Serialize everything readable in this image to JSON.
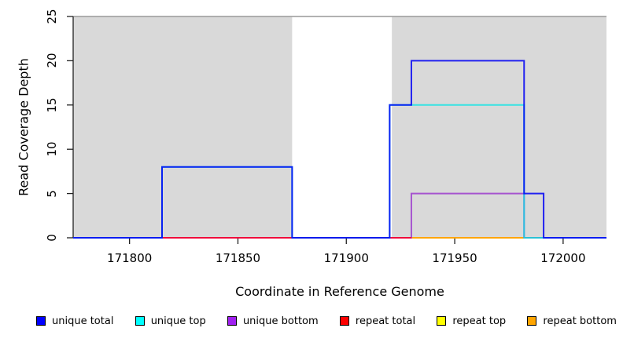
{
  "chart_data": {
    "type": "line",
    "subtype": "step-coverage",
    "title": "",
    "xlabel": "Coordinate in Reference Genome",
    "ylabel": "Read Coverage Depth",
    "xlim": [
      171774,
      172020
    ],
    "ylim": [
      0,
      25
    ],
    "x_ticks": [
      171800,
      171850,
      171900,
      171950,
      172000
    ],
    "y_ticks": [
      0,
      5,
      10,
      15,
      20,
      25
    ],
    "grid": false,
    "background_color": "#ffffff",
    "shade_color": "#d9d9d9",
    "shade_border_color": "#999999",
    "shaded_regions": [
      {
        "from": 171774,
        "to": 171875
      },
      {
        "from": 171921,
        "to": 172020
      }
    ],
    "series": [
      {
        "name": "repeat top",
        "color": "#f5e400",
        "opacity": 1,
        "segments": [
          [
            171930,
            171991,
            0
          ]
        ]
      },
      {
        "name": "repeat bottom",
        "color": "#ffa500",
        "opacity": 1,
        "segments": [
          [
            171930,
            171982,
            0
          ]
        ]
      },
      {
        "name": "unique bottom",
        "color": "#9932cc",
        "opacity": 0.8,
        "segments": [
          [
            171774,
            171930,
            0
          ],
          [
            171930,
            171982,
            5
          ],
          [
            171982,
            172020,
            0
          ]
        ]
      },
      {
        "name": "repeat total",
        "color": "#ff0026",
        "opacity": 0.85,
        "segments": [
          [
            171815,
            171930,
            0
          ]
        ]
      },
      {
        "name": "unique top",
        "color": "#00e5e5",
        "opacity": 0.75,
        "segments": [
          [
            171774,
            171815,
            0
          ],
          [
            171815,
            171875,
            8
          ],
          [
            171875,
            171920,
            0
          ],
          [
            171920,
            171982,
            15
          ],
          [
            171982,
            172020,
            0
          ]
        ]
      },
      {
        "name": "unique total",
        "color": "#0000f5",
        "opacity": 0.85,
        "segments": [
          [
            171774,
            171815,
            0
          ],
          [
            171815,
            171875,
            8
          ],
          [
            171875,
            171920,
            0
          ],
          [
            171920,
            171930,
            15
          ],
          [
            171930,
            171982,
            20
          ],
          [
            171982,
            171991,
            5
          ],
          [
            171991,
            172020,
            0
          ]
        ]
      }
    ],
    "legend": [
      {
        "label": "unique total",
        "color": "#0000ff"
      },
      {
        "label": "unique top",
        "color": "#00ffff"
      },
      {
        "label": "unique bottom",
        "color": "#a020f0"
      },
      {
        "label": "repeat total",
        "color": "#ff0000"
      },
      {
        "label": "repeat top",
        "color": "#ffff00"
      },
      {
        "label": "repeat bottom",
        "color": "#ffa500"
      }
    ],
    "legend_position": "bottom"
  }
}
